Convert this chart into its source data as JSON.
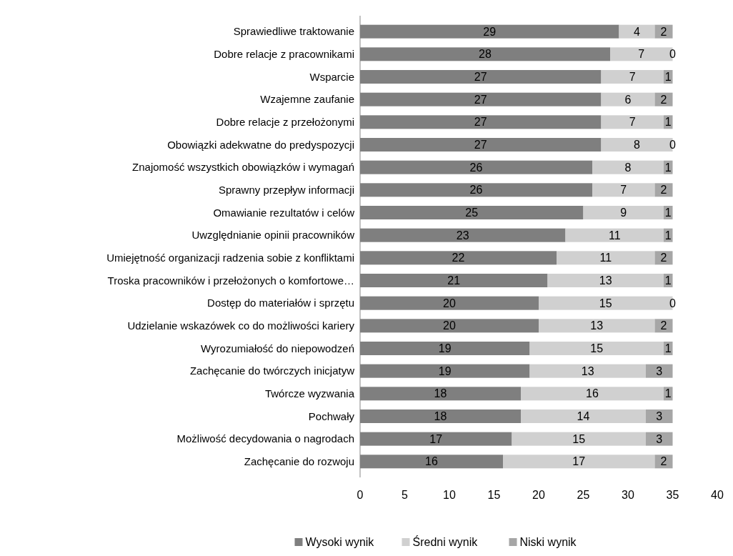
{
  "chart_data": {
    "type": "bar",
    "orientation": "horizontal",
    "stacked": true,
    "data_labels": true,
    "legend": "bottom",
    "grid": false,
    "categories": [
      "Sprawiedliwe traktowanie",
      "Dobre relacje z pracownikami",
      "Wsparcie",
      "Wzajemne zaufanie",
      "Dobre relacje z przełożonymi",
      "Obowiązki adekwatne do predyspozycji",
      "Znajomość wszystkich obowiązków i wymagań",
      "Sprawny przepływ informacji",
      "Omawianie rezultatów i celów",
      "Uwzględnianie opinii pracowników",
      "Umiejętność organizacji radzenia sobie z konfliktami",
      "Troska pracowników i przełożonych o komfortowe…",
      "Dostęp do materiałów i sprzętu",
      "Udzielanie wskazówek co do możliwości kariery",
      "Wyrozumiałość do niepowodzeń",
      "Zachęcanie do twórczych inicjatyw",
      "Twórcze wyzwania",
      "Pochwały",
      "Możliwość decydowania o nagrodach",
      "Zachęcanie do rozwoju"
    ],
    "series": [
      {
        "name": "Wysoki wynik",
        "color": "#7f7f7f",
        "values": [
          29,
          28,
          27,
          27,
          27,
          27,
          26,
          26,
          25,
          23,
          22,
          21,
          20,
          20,
          19,
          19,
          18,
          18,
          17,
          16
        ]
      },
      {
        "name": "Średni wynik",
        "color": "#d0d0d0",
        "values": [
          4,
          7,
          7,
          6,
          7,
          8,
          8,
          7,
          9,
          11,
          11,
          13,
          15,
          13,
          15,
          13,
          16,
          14,
          15,
          17
        ]
      },
      {
        "name": "Niski wynik",
        "color": "#a6a6a6",
        "values": [
          2,
          0,
          1,
          2,
          1,
          0,
          1,
          2,
          1,
          1,
          2,
          1,
          0,
          2,
          1,
          3,
          1,
          3,
          3,
          2
        ]
      }
    ],
    "xlim": [
      0,
      40
    ],
    "xticks": [
      0,
      5,
      10,
      15,
      20,
      25,
      30,
      35,
      40
    ]
  }
}
